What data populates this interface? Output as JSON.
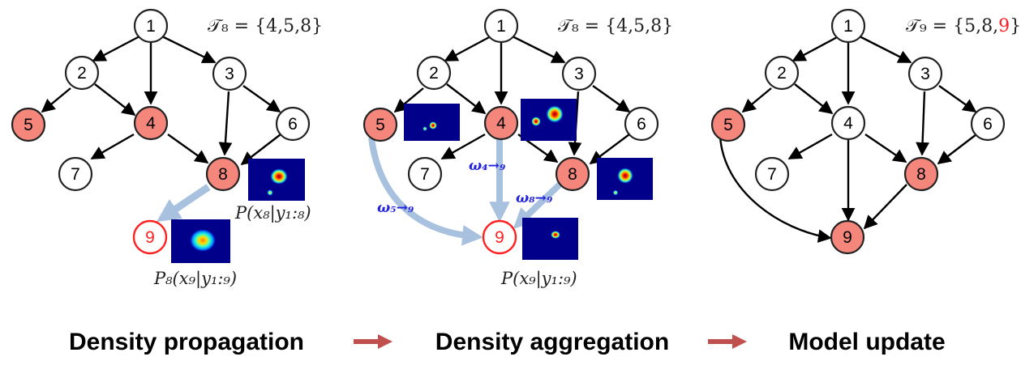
{
  "colors": {
    "highlight_fill": "#f4867c",
    "highlight_stroke": "#222222",
    "new_node_stroke": "#ff2020",
    "weight_text": "#2222dd",
    "flow_arrow": "#a7c1df",
    "step_arrow": "#c0504d",
    "heatmap_bg": "#00008b"
  },
  "panels": [
    {
      "set_label": "𝒯₈ = {4,5,8}",
      "nodes": [
        {
          "id": "1",
          "style": "plain"
        },
        {
          "id": "2",
          "style": "plain"
        },
        {
          "id": "3",
          "style": "plain"
        },
        {
          "id": "4",
          "style": "highlight"
        },
        {
          "id": "5",
          "style": "highlight"
        },
        {
          "id": "6",
          "style": "plain"
        },
        {
          "id": "7",
          "style": "plain"
        },
        {
          "id": "8",
          "style": "highlight"
        },
        {
          "id": "9",
          "style": "new"
        }
      ],
      "density_labels": [
        "P(x₈|y₁:₈)",
        "P₈(x₉|y₁:₉)"
      ]
    },
    {
      "set_label": "𝒯₈ = {4,5,8}",
      "nodes": [
        {
          "id": "1",
          "style": "plain"
        },
        {
          "id": "2",
          "style": "plain"
        },
        {
          "id": "3",
          "style": "plain"
        },
        {
          "id": "4",
          "style": "highlight"
        },
        {
          "id": "5",
          "style": "highlight"
        },
        {
          "id": "6",
          "style": "plain"
        },
        {
          "id": "7",
          "style": "plain"
        },
        {
          "id": "8",
          "style": "highlight"
        },
        {
          "id": "9",
          "style": "new"
        }
      ],
      "weights": [
        "ω₅→₉",
        "ω₄→₉",
        "ω₈→₉"
      ],
      "density_labels": [
        "P(x₉|y₁:₉)"
      ]
    },
    {
      "set_label_prefix": "𝒯₉ = {5,8,",
      "set_label_new": "9",
      "set_label_suffix": "}",
      "nodes": [
        {
          "id": "1",
          "style": "plain"
        },
        {
          "id": "2",
          "style": "plain"
        },
        {
          "id": "3",
          "style": "plain"
        },
        {
          "id": "4",
          "style": "plain"
        },
        {
          "id": "5",
          "style": "highlight"
        },
        {
          "id": "6",
          "style": "plain"
        },
        {
          "id": "7",
          "style": "plain"
        },
        {
          "id": "8",
          "style": "highlight"
        },
        {
          "id": "9",
          "style": "highlight"
        }
      ]
    }
  ],
  "captions": [
    "Density propagation",
    "Density aggregation",
    "Model update"
  ]
}
